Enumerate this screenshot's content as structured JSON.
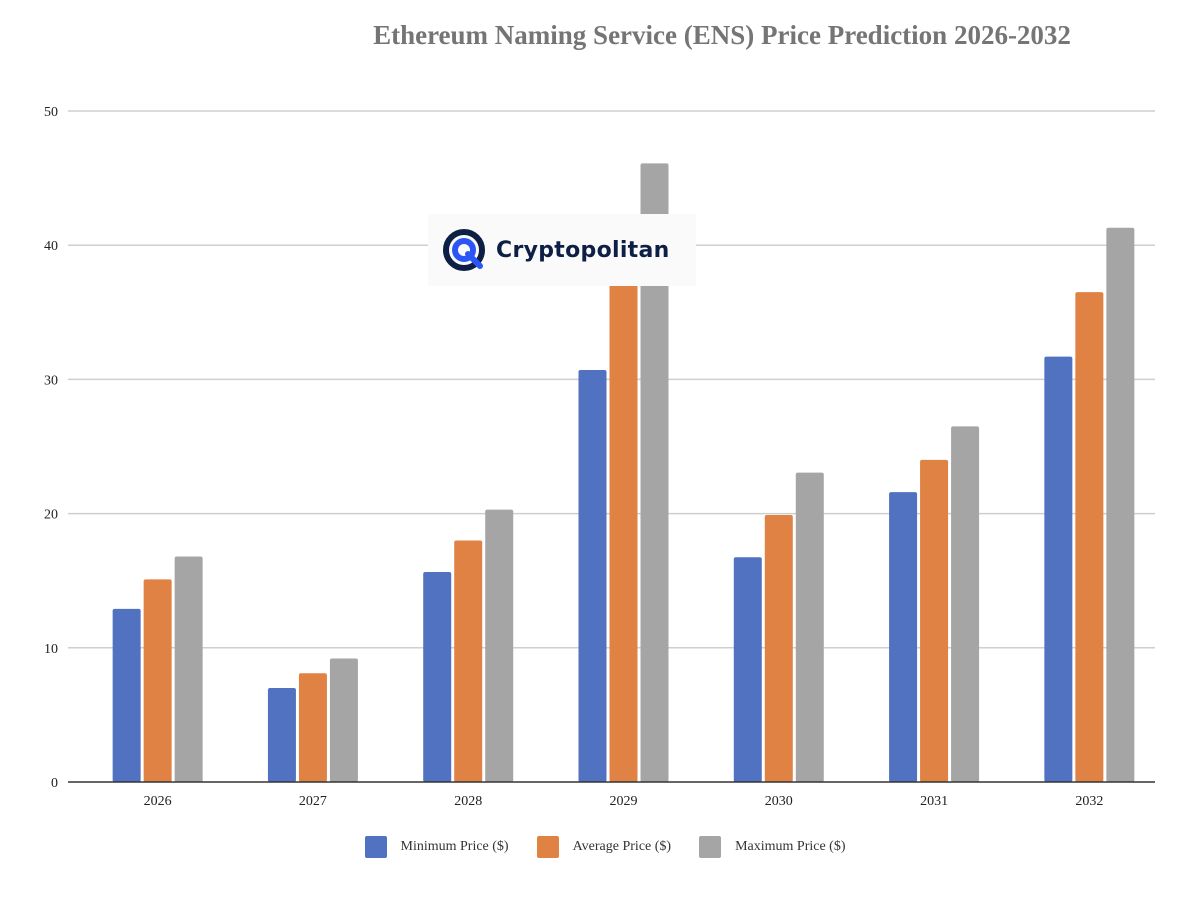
{
  "chart_data": {
    "type": "bar",
    "title": "Ethereum Naming Service (ENS) Price Prediction 2026-2032",
    "xlabel": "",
    "ylabel": "",
    "categories": [
      "2026",
      "2027",
      "2028",
      "2029",
      "2030",
      "2031",
      "2032"
    ],
    "ylim": [
      0,
      50
    ],
    "yticks": [
      0,
      10,
      20,
      30,
      40,
      50
    ],
    "grid": true,
    "legend_position": "bottom",
    "series": [
      {
        "name": "Minimum Price ($)",
        "color": "#5072c0",
        "values": [
          12.9,
          7.0,
          15.65,
          30.7,
          16.75,
          21.6,
          31.7
        ]
      },
      {
        "name": "Average Price ($)",
        "color": "#df8244",
        "values": [
          15.1,
          8.1,
          18.0,
          38.4,
          19.9,
          24.0,
          36.5
        ]
      },
      {
        "name": "Maximum Price ($)",
        "color": "#a5a5a5",
        "values": [
          16.8,
          9.2,
          20.3,
          46.1,
          23.05,
          26.5,
          41.3
        ]
      }
    ]
  },
  "watermark": {
    "text": "Cryptopolitan",
    "color": "#0e1f45",
    "accent": "#2b56f5"
  }
}
